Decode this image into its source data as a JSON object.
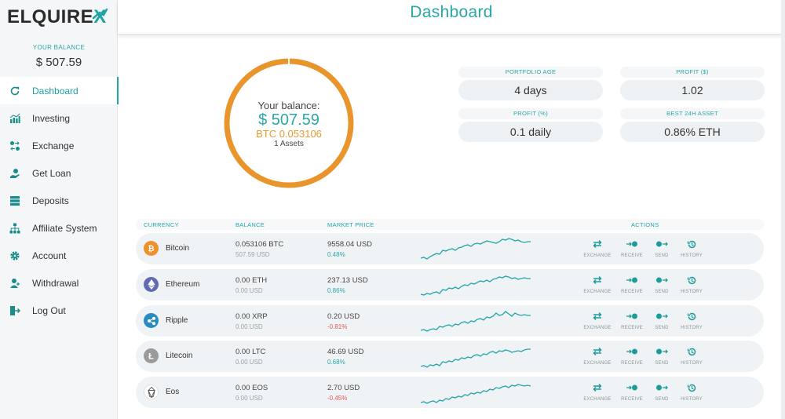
{
  "brand": {
    "name_main": "ELQUIRE",
    "name_x": "X"
  },
  "balance": {
    "label": "YOUR BALANCE",
    "value": "$ 507.59"
  },
  "nav": [
    {
      "label": "Dashboard",
      "icon": "refresh-icon",
      "active": true
    },
    {
      "label": "Investing",
      "icon": "bar-chart-icon"
    },
    {
      "label": "Exchange",
      "icon": "exchange-icon"
    },
    {
      "label": "Get Loan",
      "icon": "hand-coin-icon"
    },
    {
      "label": "Deposits",
      "icon": "server-icon"
    },
    {
      "label": "Affiliate System",
      "icon": "network-icon"
    },
    {
      "label": "Account",
      "icon": "gear-icon"
    },
    {
      "label": "Withdrawal",
      "icon": "person-plus-icon"
    },
    {
      "label": "Log Out",
      "icon": "logout-icon"
    }
  ],
  "header": {
    "title": "Dashboard"
  },
  "donut": {
    "label": "Your balance:",
    "usd": "$ 507.59",
    "btc": "BTC 0.053106",
    "assets": "1 Assets",
    "ring_color": "#e8962c"
  },
  "stats": [
    {
      "label": "PORTFOLIO AGE",
      "value": "4 days"
    },
    {
      "label": "PROFIT ($)",
      "value": "1.02"
    },
    {
      "label": "PROFIT (%)",
      "value": "0.1 daily"
    },
    {
      "label": "BEST 24H ASSET",
      "value": "0.86% ETH"
    }
  ],
  "table": {
    "headers": {
      "currency": "CURRENCY",
      "balance": "BALANCE",
      "market": "MARKET PRICE",
      "actions": "ACTIONS"
    },
    "action_labels": [
      "EXCHANGE",
      "RECEIVE",
      "SEND",
      "HISTORY"
    ],
    "rows": [
      {
        "name": "Bitcoin",
        "icon": "bitcoin-icon",
        "icon_color": "#f0902a",
        "balance": "0.053106 BTC",
        "balance_usd": "507.59 USD",
        "price": "9558.04 USD",
        "change": "0.48%",
        "change_color": "#2aa7a7",
        "spark": [
          28,
          27,
          29,
          26,
          24,
          22,
          23,
          18,
          19,
          17,
          16,
          18,
          15,
          14,
          12,
          11,
          13,
          10,
          9,
          10,
          8,
          6,
          7,
          8,
          9,
          7,
          4,
          5,
          3,
          4,
          6,
          5,
          7,
          8,
          7,
          7
        ]
      },
      {
        "name": "Ethereum",
        "icon": "ethereum-icon",
        "icon_color": "#5f6cb0",
        "balance": "0.00 ETH",
        "balance_usd": "0.00 USD",
        "price": "237.13 USD",
        "change": "0.86%",
        "change_color": "#2aa7a7",
        "spark": [
          28,
          29,
          27,
          28,
          26,
          25,
          27,
          22,
          23,
          20,
          21,
          19,
          21,
          18,
          16,
          17,
          14,
          15,
          13,
          11,
          12,
          10,
          12,
          9,
          8,
          6,
          7,
          5,
          6,
          8,
          7,
          9,
          8,
          7,
          8,
          8
        ]
      },
      {
        "name": "Ripple",
        "icon": "ripple-icon",
        "icon_color": "#2a8bc2",
        "balance": "0.00 XRP",
        "balance_usd": "0.00 USD",
        "price": "0.20 USD",
        "change": "-0.81%",
        "change_color": "#e05757",
        "spark": [
          28,
          27,
          29,
          27,
          26,
          27,
          23,
          24,
          22,
          21,
          23,
          20,
          21,
          18,
          17,
          19,
          16,
          17,
          14,
          13,
          15,
          11,
          12,
          10,
          6,
          9,
          8,
          4,
          7,
          10,
          6,
          8,
          9,
          8,
          9,
          9
        ]
      },
      {
        "name": "Litecoin",
        "icon": "litecoin-icon",
        "icon_color": "#9a9a9a",
        "balance": "0.00 LTC",
        "balance_usd": "0.00 USD",
        "price": "46.69 USD",
        "change": "0.68%",
        "change_color": "#2aa7a7",
        "spark": [
          29,
          28,
          30,
          27,
          28,
          26,
          28,
          23,
          24,
          22,
          23,
          20,
          21,
          18,
          19,
          17,
          18,
          15,
          14,
          16,
          13,
          14,
          11,
          10,
          12,
          9,
          10,
          8,
          9,
          11,
          10,
          9,
          10,
          8,
          7,
          7
        ]
      },
      {
        "name": "Eos",
        "icon": "eos-icon",
        "icon_color": "#ffffff",
        "balance": "0.00 EOS",
        "balance_usd": "0.00 USD",
        "price": "2.70 USD",
        "change": "-0.45%",
        "change_color": "#e05757",
        "spark": [
          29,
          28,
          30,
          28,
          27,
          29,
          26,
          27,
          24,
          25,
          22,
          23,
          21,
          22,
          19,
          20,
          17,
          18,
          16,
          17,
          14,
          15,
          12,
          13,
          10,
          11,
          9,
          8,
          10,
          7,
          8,
          6,
          7,
          8,
          7,
          8
        ]
      }
    ]
  }
}
